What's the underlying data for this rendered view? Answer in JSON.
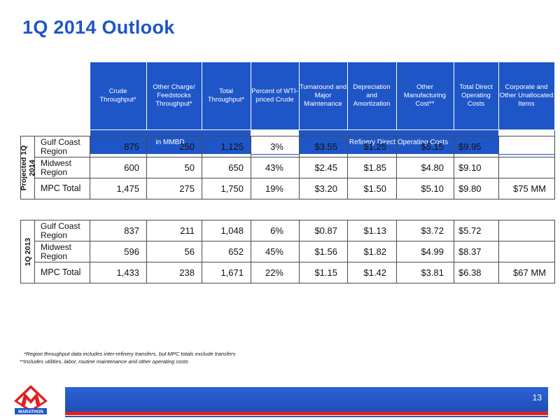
{
  "title": "1Q 2014 Outlook",
  "page_number": "13",
  "logo_text": "MARATHON",
  "colors": {
    "accent": "#1f56c7",
    "red": "#e02020"
  },
  "headers": {
    "c1": "Crude Throughput*",
    "c2": "Other Charge/ Feedstocks Throughput*",
    "c3": "Total Throughput*",
    "c4": "Percent of WTI-priced Crude",
    "c5": "Turnaround and Major Maintenance",
    "c6": "Depreciation and Amortization",
    "c7": "Other Manufacturing Cost**",
    "c8": "Total Direct Operating Costs",
    "c9": "Corporate and Other Unallocated Items"
  },
  "subheaders": {
    "mmbd": "in MMBD",
    "costs": "Refinery Direct Operating Costs"
  },
  "projected": {
    "label": "Projected 1Q 2014",
    "rows": [
      {
        "region": "Gulf Coast Region",
        "crude": "875",
        "other": "250",
        "total": "1,125",
        "wti": "3%",
        "turn": "$3.55",
        "dep": "$1.25",
        "omc": "$5.15",
        "tdoc": "$9.95",
        "corp": ""
      },
      {
        "region": "Midwest Region",
        "crude": "600",
        "other": "50",
        "total": "650",
        "wti": "43%",
        "turn": "$2.45",
        "dep": "$1.85",
        "omc": "$4.80",
        "tdoc": "$9.10",
        "corp": ""
      },
      {
        "region": "MPC Total",
        "crude": "1,475",
        "other": "275",
        "total": "1,750",
        "wti": "19%",
        "turn": "$3.20",
        "dep": "$1.50",
        "omc": "$5.10",
        "tdoc": "$9.80",
        "corp": "$75 MM"
      }
    ]
  },
  "actual": {
    "label": "1Q 2013",
    "rows": [
      {
        "region": "Gulf Coast Region",
        "crude": "837",
        "other": "211",
        "total": "1,048",
        "wti": "6%",
        "turn": "$0.87",
        "dep": "$1.13",
        "omc": "$3.72",
        "tdoc": "$5.72",
        "corp": ""
      },
      {
        "region": "Midwest Region",
        "crude": "596",
        "other": "56",
        "total": "652",
        "wti": "45%",
        "turn": "$1.56",
        "dep": "$1.82",
        "omc": "$4.99",
        "tdoc": "$8.37",
        "corp": ""
      },
      {
        "region": "MPC Total",
        "crude": "1,433",
        "other": "238",
        "total": "1,671",
        "wti": "22%",
        "turn": "$1.15",
        "dep": "$1.42",
        "omc": "$3.81",
        "tdoc": "$6.38",
        "corp": "$67 MM"
      }
    ]
  },
  "footnotes": {
    "f1": "*Region throughput data includes inter-refinery transfers, but MPC totals exclude transfers",
    "f2": "**Includes utilities, labor, routine maintenance and other operating costs"
  }
}
